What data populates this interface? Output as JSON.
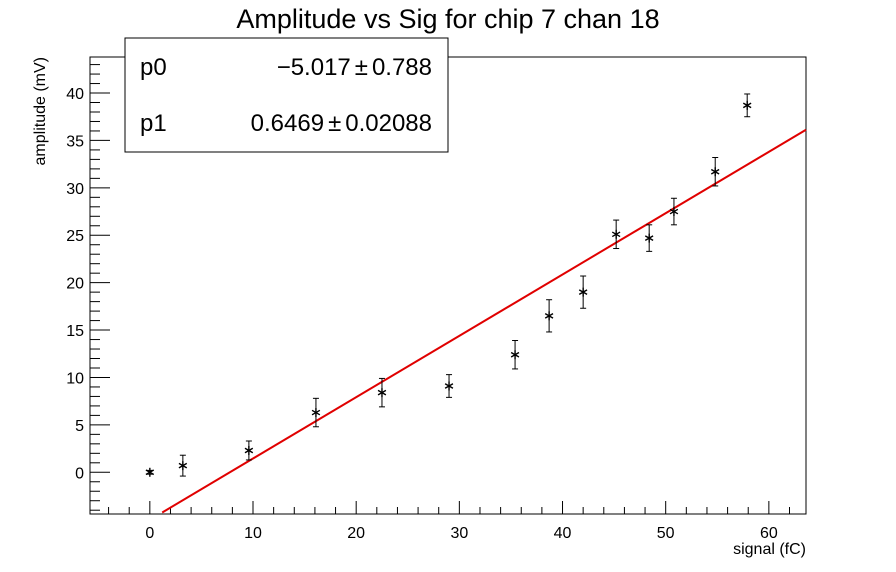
{
  "chart_data": {
    "type": "scatter",
    "title": "Amplitude vs Sig for chip 7 chan 18",
    "xlabel": "signal (fC)",
    "ylabel": "amplitude (mV)",
    "xlim": [
      -5.8,
      63.6
    ],
    "ylim": [
      -4.4,
      43.8
    ],
    "x_ticks": [
      0,
      10,
      20,
      30,
      40,
      50,
      60
    ],
    "y_ticks": [
      0,
      5,
      10,
      15,
      20,
      25,
      30,
      35,
      40
    ],
    "grid": false,
    "series": [
      {
        "marker": "asterisk",
        "color": "#000000",
        "points": [
          {
            "x": 0.0,
            "y": 0.0,
            "err": 0.2
          },
          {
            "x": 3.2,
            "y": 0.7,
            "err": 1.1
          },
          {
            "x": 9.6,
            "y": 2.3,
            "err": 1.0
          },
          {
            "x": 16.1,
            "y": 6.3,
            "err": 1.5
          },
          {
            "x": 22.5,
            "y": 8.4,
            "err": 1.5
          },
          {
            "x": 29.0,
            "y": 9.1,
            "err": 1.2
          },
          {
            "x": 35.4,
            "y": 12.4,
            "err": 1.5
          },
          {
            "x": 38.7,
            "y": 16.5,
            "err": 1.7
          },
          {
            "x": 42.0,
            "y": 19.0,
            "err": 1.7
          },
          {
            "x": 45.2,
            "y": 25.1,
            "err": 1.5
          },
          {
            "x": 48.4,
            "y": 24.7,
            "err": 1.4
          },
          {
            "x": 50.8,
            "y": 27.5,
            "err": 1.4
          },
          {
            "x": 54.8,
            "y": 31.7,
            "err": 1.5
          },
          {
            "x": 57.9,
            "y": 38.7,
            "err": 1.2
          }
        ]
      }
    ],
    "fit": {
      "color": "#e00000",
      "x_range": [
        1.2,
        63.6
      ],
      "p0": -5.017,
      "p1": 0.6469
    },
    "stats_box": {
      "placement": "top-left",
      "rows": [
        {
          "name": "p0",
          "value": "−5.017",
          "error": "0.788"
        },
        {
          "name": "p1",
          "value": "0.6469",
          "error": "0.02088"
        }
      ],
      "pm": "±"
    }
  }
}
